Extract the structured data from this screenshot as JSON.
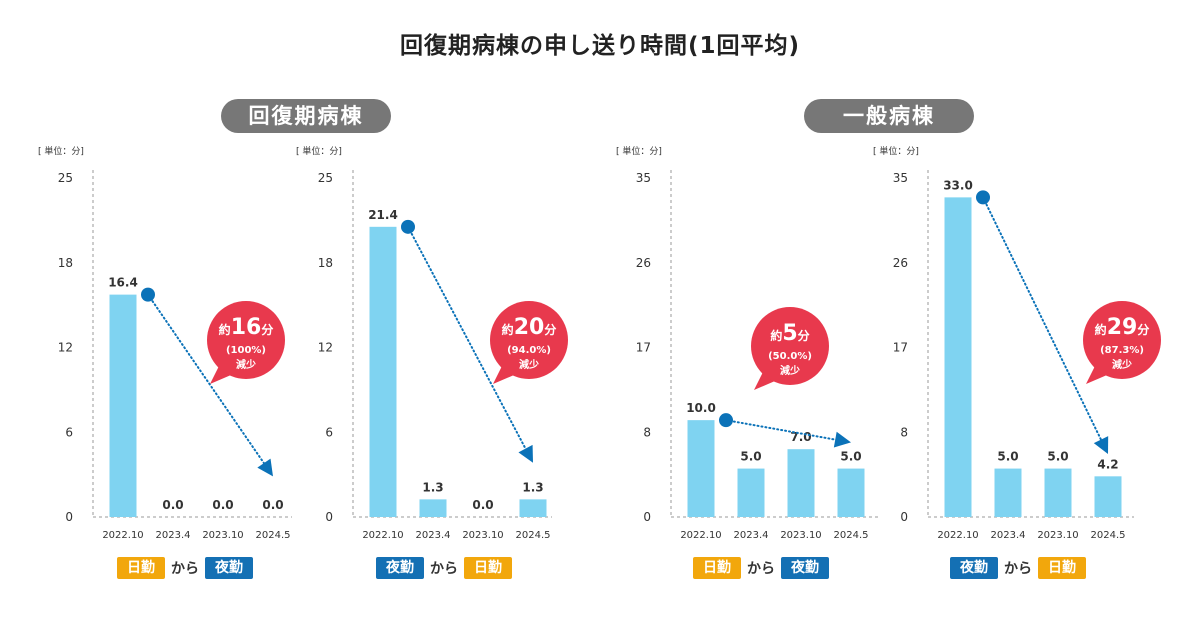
{
  "title": "回復期病棟の申し送り時間(1回平均)",
  "sections": [
    {
      "label": "回復期病棟"
    },
    {
      "label": "一般病棟"
    }
  ],
  "unit_label": "[ 単位：分]",
  "colors": {
    "bar": "#7fd3f1",
    "arrow": "#0b72b8",
    "bubble": "#e8394d",
    "axis": "#999999",
    "day": "#f2a70c",
    "night": "#1470b4",
    "pill": "#777777"
  },
  "legends": [
    {
      "from": "日勤",
      "connector": "から",
      "to": "夜勤"
    },
    {
      "from": "夜勤",
      "connector": "から",
      "to": "日勤"
    },
    {
      "from": "日勤",
      "connector": "から",
      "to": "夜勤"
    },
    {
      "from": "夜勤",
      "connector": "から",
      "to": "日勤"
    }
  ],
  "chart_data": [
    {
      "type": "bar",
      "section": "回復期病棟",
      "categories": [
        "2022.10",
        "2023.4",
        "2023.10",
        "2024.5"
      ],
      "values": [
        16.4,
        0.0,
        0.0,
        0.0
      ],
      "data_labels": [
        "16.4",
        "0.0",
        "0.0",
        "0.0"
      ],
      "y_ticks": [
        "0",
        "6",
        "12",
        "18",
        "25"
      ],
      "ylim": [
        0,
        25
      ],
      "unit": "[ 単位：分]",
      "arrow": {
        "from_index": 0,
        "to_index": 3,
        "from_value": 16.4,
        "to_value": 3.0
      },
      "callout": {
        "prefix": "約",
        "value": "16",
        "suffix": "分",
        "pct": "(100%)",
        "note": "減少"
      }
    },
    {
      "type": "bar",
      "section": "回復期病棟",
      "categories": [
        "2022.10",
        "2023.4",
        "2023.10",
        "2024.5"
      ],
      "values": [
        21.4,
        1.3,
        0.0,
        1.3
      ],
      "data_labels": [
        "21.4",
        "1.3",
        "0.0",
        "1.3"
      ],
      "y_ticks": [
        "0",
        "6",
        "12",
        "18",
        "25"
      ],
      "ylim": [
        0,
        25
      ],
      "unit": "[ 単位：分]",
      "arrow": {
        "from_index": 0,
        "to_index": 3,
        "from_value": 21.4,
        "to_value": 4.0
      },
      "callout": {
        "prefix": "約",
        "value": "20",
        "suffix": "分",
        "pct": "(94.0%)",
        "note": "減少"
      }
    },
    {
      "type": "bar",
      "section": "一般病棟",
      "categories": [
        "2022.10",
        "2023.4",
        "2023.10",
        "2024.5"
      ],
      "values": [
        10.0,
        5.0,
        7.0,
        5.0
      ],
      "data_labels": [
        "10.0",
        "5.0",
        "7.0",
        "5.0"
      ],
      "y_ticks": [
        "0",
        "8",
        "17",
        "26",
        "35"
      ],
      "ylim": [
        0,
        35
      ],
      "unit": "[ 単位：分]",
      "arrow": {
        "from_index": 0,
        "to_index": 3,
        "from_value": 10.0,
        "to_value": 7.7
      },
      "callout": {
        "prefix": "約",
        "value": "5",
        "suffix": "分",
        "pct": "(50.0%)",
        "note": "減少"
      }
    },
    {
      "type": "bar",
      "section": "一般病棟",
      "categories": [
        "2022.10",
        "2023.4",
        "2023.10",
        "2024.5"
      ],
      "values": [
        33.0,
        5.0,
        5.0,
        4.2
      ],
      "data_labels": [
        "33.0",
        "5.0",
        "5.0",
        "4.2"
      ],
      "y_ticks": [
        "0",
        "8",
        "17",
        "26",
        "35"
      ],
      "ylim": [
        0,
        35
      ],
      "unit": "[ 単位：分]",
      "arrow": {
        "from_index": 0,
        "to_index": 3,
        "from_value": 33.0,
        "to_value": 6.5
      },
      "callout": {
        "prefix": "約",
        "value": "29",
        "suffix": "分",
        "pct": "(87.3%)",
        "note": "減少"
      }
    }
  ]
}
